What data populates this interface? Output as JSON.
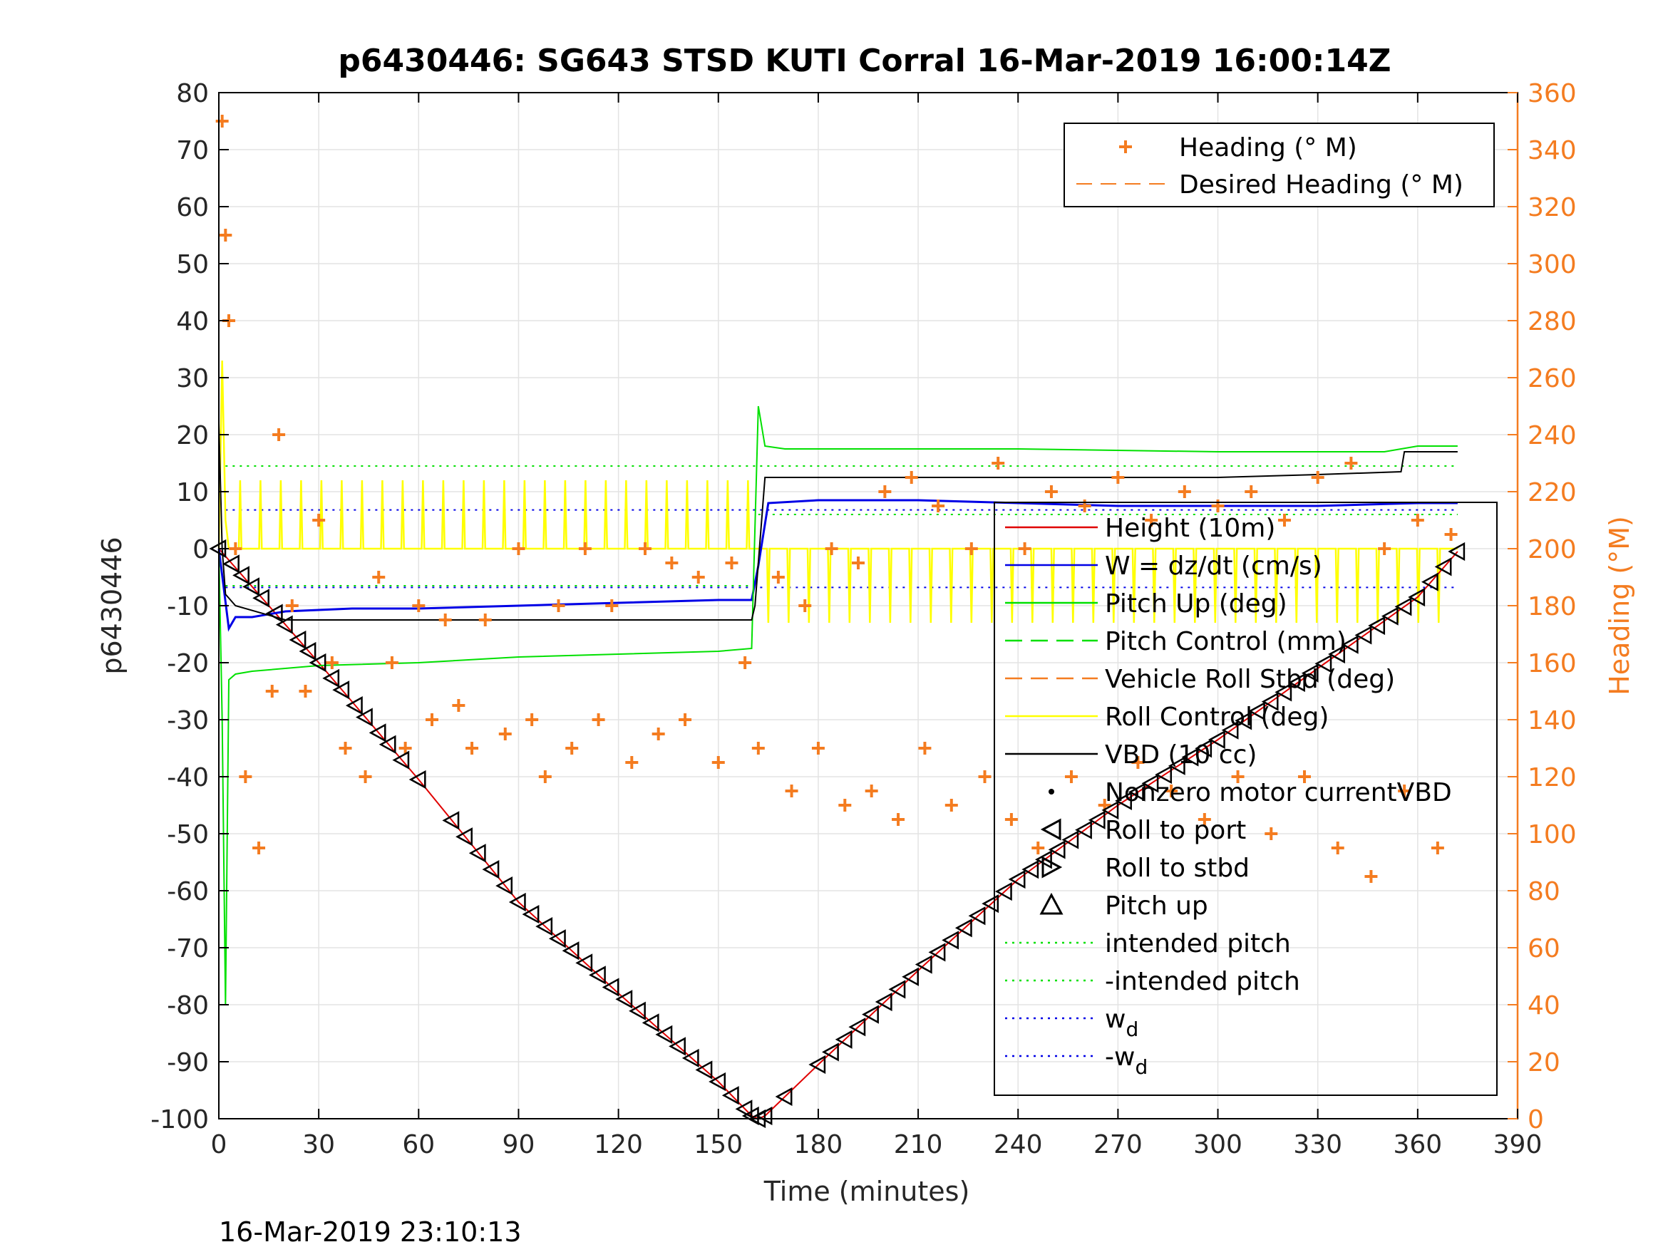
{
  "chart_data": {
    "type": "line",
    "title": "p6430446: SG643 STSD KUTI Corral 16-Mar-2019 16:00:14Z",
    "footer": "16-Mar-2019 23:10:13",
    "xlabel": "Time (minutes)",
    "ylabel_left": "p6430446",
    "ylabel_right": "Heading (°M)",
    "xlim": [
      0,
      390
    ],
    "ylim_left": [
      -100,
      80
    ],
    "ylim_right": [
      0,
      360
    ],
    "xticks": [
      0,
      30,
      60,
      90,
      120,
      150,
      180,
      210,
      240,
      270,
      300,
      330,
      360,
      390
    ],
    "yticks_left": [
      80,
      70,
      60,
      50,
      40,
      30,
      20,
      10,
      0,
      -10,
      -20,
      -30,
      -40,
      -50,
      -60,
      -70,
      -80,
      -90,
      -100
    ],
    "yticks_right": [
      360,
      340,
      320,
      300,
      280,
      260,
      240,
      220,
      200,
      180,
      160,
      140,
      120,
      100,
      80,
      60,
      40,
      20,
      0
    ],
    "grid": true,
    "colors": {
      "heading": "#f47c20",
      "height": "#e00000",
      "w": "#0000e6",
      "pitch": "#00e000",
      "roll": "#ffff00",
      "vbd": "#000000",
      "axis_right": "#f47c20"
    },
    "legend_top": {
      "placement": "top-right",
      "entries": [
        "Heading (° M)",
        "Desired Heading (° M)"
      ]
    },
    "legend_main": {
      "placement": "right",
      "entries": [
        "Height (10m)",
        "W = dz/dt (cm/s)",
        "Pitch Up (deg)",
        "Pitch Control (mm)",
        "Vehicle Roll Stbd (deg)",
        "Roll Control (deg)",
        "VBD (10 cc)",
        "Nonzero motor currentVBD",
        "Roll to port",
        "Roll to stbd",
        "Pitch up",
        "intended pitch",
        "-intended pitch",
        "w_d",
        "-w_d"
      ]
    },
    "reference_lines": {
      "intended_pitch": 14.5,
      "neg_intended_pitch_dive": -6.5,
      "neg_intended_pitch_climb": 6.0,
      "w_d": 6.8,
      "neg_w_d": -6.8
    },
    "series": [
      {
        "name": "Height (10m)",
        "x": [
          0,
          30,
          60,
          90,
          120,
          150,
          160,
          162,
          164,
          180,
          210,
          240,
          270,
          300,
          330,
          360,
          372
        ],
        "values": [
          0,
          -20,
          -40.5,
          -62,
          -78,
          -93.5,
          -99.5,
          -100,
          -99.5,
          -90.5,
          -74,
          -58,
          -45,
          -33.5,
          -21,
          -8.5,
          -0.5
        ]
      },
      {
        "name": "W = dz/dt (cm/s)",
        "x": [
          0,
          3,
          5,
          10,
          20,
          40,
          60,
          90,
          120,
          150,
          160,
          162,
          165,
          180,
          210,
          240,
          270,
          300,
          330,
          360,
          372
        ],
        "values": [
          0,
          -14,
          -12,
          -12,
          -11,
          -10.5,
          -10.5,
          -10,
          -9.5,
          -9,
          -9,
          -3,
          8,
          8.5,
          8.5,
          8,
          7.5,
          7.5,
          7.5,
          8,
          8
        ]
      },
      {
        "name": "Pitch Up (deg)",
        "x": [
          0,
          1,
          2,
          3,
          5,
          10,
          30,
          60,
          90,
          120,
          150,
          160,
          162,
          164,
          170,
          210,
          240,
          300,
          330,
          350,
          360,
          372
        ],
        "values": [
          0,
          -30,
          -80,
          -23,
          -22,
          -21.5,
          -20.5,
          -20,
          -19,
          -18.5,
          -18,
          -17.5,
          25,
          18,
          17.5,
          17.5,
          17.5,
          17,
          17,
          17,
          18,
          18
        ]
      },
      {
        "name": "VBD (10 cc)",
        "x": [
          0,
          1,
          2,
          5,
          20,
          40,
          60,
          90,
          120,
          150,
          160,
          161,
          164,
          200,
          240,
          300,
          330,
          355,
          356,
          372
        ],
        "values": [
          22,
          0,
          -8,
          -10,
          -12.5,
          -12.5,
          -12.5,
          -12.5,
          -12.5,
          -12.5,
          -12.5,
          -10,
          12.5,
          12.5,
          12.5,
          12.5,
          13,
          13.5,
          17,
          17
        ]
      }
    ],
    "heading_markers": {
      "x": [
        1,
        2,
        3,
        5,
        8,
        12,
        16,
        18,
        22,
        26,
        30,
        34,
        38,
        44,
        48,
        52,
        56,
        60,
        64,
        68,
        72,
        76,
        80,
        86,
        90,
        94,
        98,
        102,
        106,
        110,
        114,
        118,
        124,
        128,
        132,
        136,
        140,
        144,
        150,
        154,
        158,
        162,
        168,
        172,
        176,
        180,
        184,
        188,
        192,
        196,
        200,
        204,
        208,
        212,
        216,
        220,
        226,
        230,
        234,
        238,
        242,
        246,
        250,
        256,
        260,
        266,
        270,
        276,
        280,
        286,
        290,
        296,
        300,
        306,
        310,
        316,
        320,
        326,
        330,
        336,
        340,
        346,
        350,
        356,
        360,
        366,
        370
      ],
      "values": [
        350,
        310,
        280,
        200,
        120,
        95,
        150,
        240,
        180,
        150,
        210,
        160,
        130,
        120,
        190,
        160,
        130,
        180,
        140,
        175,
        145,
        130,
        175,
        135,
        200,
        140,
        120,
        180,
        130,
        200,
        140,
        180,
        125,
        200,
        135,
        195,
        140,
        190,
        125,
        195,
        160,
        130,
        190,
        115,
        180,
        130,
        200,
        110,
        195,
        115,
        220,
        105,
        225,
        130,
        215,
        110,
        200,
        120,
        230,
        105,
        200,
        95,
        220,
        120,
        215,
        110,
        225,
        125,
        210,
        115,
        220,
        105,
        215,
        120,
        220,
        100,
        210,
        120,
        225,
        95,
        230,
        85,
        200,
        115,
        210,
        95,
        205
      ]
    },
    "triangle_marker_x": [
      0,
      4,
      7,
      10,
      13,
      17,
      20,
      24,
      27,
      30,
      34,
      37,
      41,
      44,
      48,
      51,
      55,
      60,
      70,
      74,
      78,
      82,
      86,
      90,
      94,
      98,
      102,
      106,
      110,
      114,
      118,
      122,
      126,
      130,
      134,
      138,
      142,
      146,
      150,
      154,
      158,
      160,
      162,
      164,
      170,
      180,
      184,
      188,
      192,
      196,
      200,
      204,
      208,
      212,
      216,
      220,
      224,
      228,
      232,
      236,
      240,
      244,
      248,
      252,
      256,
      260,
      264,
      268,
      272,
      276,
      280,
      284,
      288,
      292,
      296,
      300,
      304,
      308,
      312,
      316,
      320,
      324,
      328,
      332,
      336,
      340,
      344,
      348,
      352,
      356,
      360,
      364,
      368,
      372
    ]
  }
}
